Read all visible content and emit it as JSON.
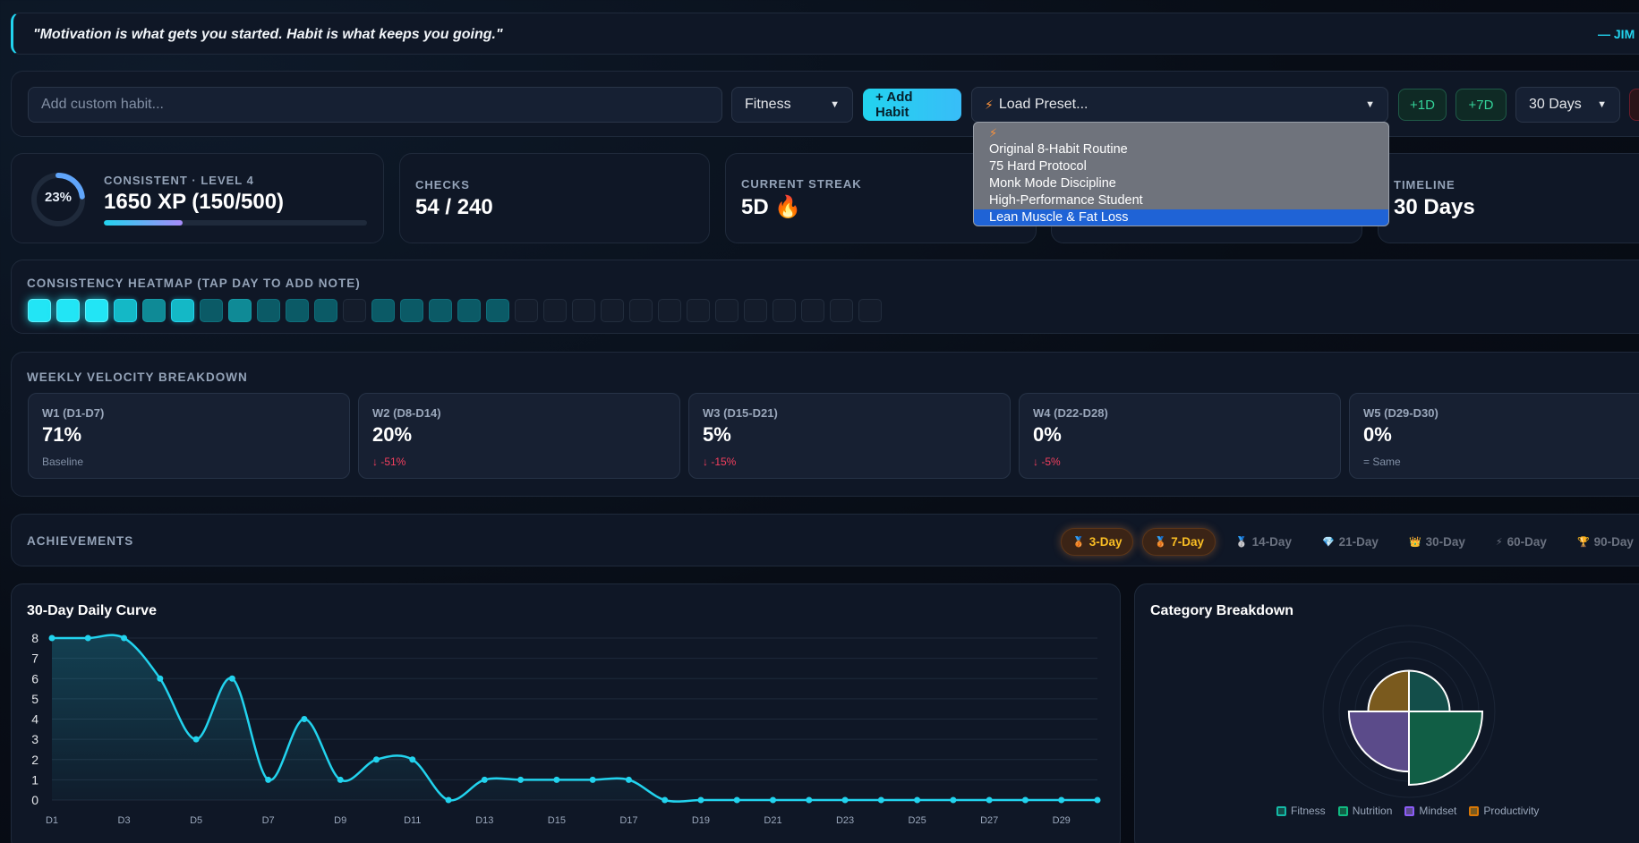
{
  "quote": {
    "text": "\"Motivation is what gets you started. Habit is what keeps you going.\"",
    "author": "— JIM R"
  },
  "controls": {
    "habit_placeholder": "Add custom habit...",
    "category": "Fitness",
    "add_label": "+ Add Habit",
    "preset_label": "Load Preset...",
    "plus1_label": "+1D",
    "plus7_label": "+7D",
    "days_label": "30 Days"
  },
  "preset_dropdown": {
    "items": [
      "Original 8-Habit Routine",
      "75 Hard Protocol",
      "Monk Mode Discipline",
      "High-Performance Student",
      "Lean Muscle & Fat Loss"
    ],
    "selected_index": 4
  },
  "stats": {
    "ring_pct": "23%",
    "ring_fraction": 0.23,
    "level_label": "CONSISTENT · LEVEL 4",
    "xp": "1650 XP (150/500)",
    "xp_fraction": 0.3,
    "checks_label": "CHECKS",
    "checks_value": "54 / 240",
    "streak_label": "CURRENT STREAK",
    "streak_value": "5D 🔥",
    "timeline_label": "TIMELINE",
    "timeline_value": "30 Days"
  },
  "heatmap": {
    "title": "CONSISTENCY HEATMAP (TAP DAY TO ADD NOTE)",
    "values": [
      8,
      8,
      8,
      6,
      3,
      6,
      1,
      4,
      1,
      2,
      2,
      0,
      1,
      1,
      1,
      1,
      1,
      0,
      0,
      0,
      0,
      0,
      0,
      0,
      0,
      0,
      0,
      0,
      0,
      0
    ]
  },
  "weekly": {
    "title": "WEEKLY VELOCITY BREAKDOWN",
    "weeks": [
      {
        "title": "W1 (D1-D7)",
        "pct": "71%",
        "delta": "Baseline",
        "kind": "base"
      },
      {
        "title": "W2 (D8-D14)",
        "pct": "20%",
        "delta": "↓ -51%",
        "kind": "down"
      },
      {
        "title": "W3 (D15-D21)",
        "pct": "5%",
        "delta": "↓ -15%",
        "kind": "down"
      },
      {
        "title": "W4 (D22-D28)",
        "pct": "0%",
        "delta": "↓ -5%",
        "kind": "down"
      },
      {
        "title": "W5 (D29-D30)",
        "pct": "0%",
        "delta": "= Same",
        "kind": "same"
      }
    ]
  },
  "achievements": {
    "title": "ACHIEVEMENTS",
    "badges": [
      {
        "icon": "🥉",
        "label": "3-Day",
        "on": true
      },
      {
        "icon": "🥉",
        "label": "7-Day",
        "on": true
      },
      {
        "icon": "🥈",
        "label": "14-Day",
        "on": false
      },
      {
        "icon": "💎",
        "label": "21-Day",
        "on": false
      },
      {
        "icon": "👑",
        "label": "30-Day",
        "on": false
      },
      {
        "icon": "⚡",
        "label": "60-Day",
        "on": false
      },
      {
        "icon": "🏆",
        "label": "90-Day",
        "on": false
      }
    ]
  },
  "curve_title": "30-Day Daily Curve",
  "category_title": "Category Breakdown",
  "colors": {
    "accent": "#22d3ee",
    "fitness": "#14b8a6",
    "nutrition": "#10b981",
    "mindset": "#8b5cf6",
    "productivity": "#d97706"
  },
  "chart_data": [
    {
      "type": "area",
      "title": "30-Day Daily Curve",
      "x": [
        "D1",
        "D2",
        "D3",
        "D4",
        "D5",
        "D6",
        "D7",
        "D8",
        "D9",
        "D10",
        "D11",
        "D12",
        "D13",
        "D14",
        "D15",
        "D16",
        "D17",
        "D18",
        "D19",
        "D20",
        "D21",
        "D22",
        "D23",
        "D24",
        "D25",
        "D26",
        "D27",
        "D28",
        "D29",
        "D30"
      ],
      "x_tick_labels": [
        "D1",
        "D3",
        "D5",
        "D7",
        "D9",
        "D11",
        "D13",
        "D15",
        "D17",
        "D19",
        "D21",
        "D23",
        "D25",
        "D27",
        "D29"
      ],
      "series": [
        {
          "values": [
            8,
            8,
            8,
            6,
            3,
            6,
            1,
            4,
            1,
            2,
            2,
            0,
            1,
            1,
            1,
            1,
            1,
            0,
            0,
            0,
            0,
            0,
            0,
            0,
            0,
            0,
            0,
            0,
            0,
            0
          ]
        }
      ],
      "ylim": [
        0,
        8
      ],
      "y_ticks": [
        0,
        1,
        2,
        3,
        4,
        5,
        6,
        7,
        8
      ],
      "grid": true
    },
    {
      "type": "pie",
      "title": "Category Breakdown",
      "categories": [
        "Fitness",
        "Nutrition",
        "Mindset",
        "Productivity"
      ],
      "values": [
        5,
        25,
        15,
        5
      ],
      "legend": "bottom"
    }
  ]
}
